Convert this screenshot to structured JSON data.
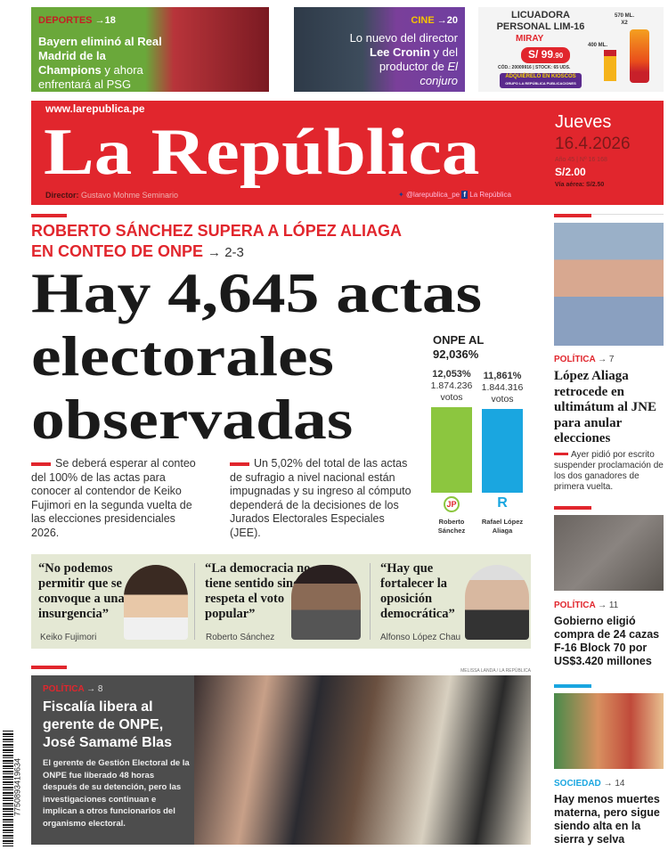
{
  "promos": {
    "sports": {
      "section": "DEPORTES",
      "ref": "→18",
      "text_bold": "Bayern eliminó al Real Madrid de la Champions",
      "text": " y ahora enfrentará al PSG"
    },
    "cinema": {
      "section": "CINE",
      "ref": "→20",
      "text": "Lo nuevo del director ",
      "text_bold": "Lee Cronin",
      "text2": " y del productor de ",
      "text_italic": "El conjuro"
    },
    "ad": {
      "title_line1": "LICUADORA",
      "title_line2": "PERSONAL LIM-16",
      "brand": "MIRAY",
      "price": "S/ 99",
      "price_cents": ".90",
      "code": "CÓD.: 20009916 | STOCK: 65 UDS.",
      "cta": "ADQUIÉRELO EN KIOSCOS",
      "cta_sub": "GRUPO LA REPÚBLICA PUBLICACIONES",
      "size1": "570 ML.",
      "size1b": "X2",
      "size2": "400 ML."
    }
  },
  "masthead": {
    "url": "www.larepublica.pe",
    "logo": "La República",
    "director_label": "Director:",
    "director": " Gustavo Mohme Seminario",
    "twitter": "@larepublica_pe",
    "facebook": "La República",
    "day": "Jueves",
    "date": "16.4.2026",
    "issue": "Año 45 | Nº 16 168",
    "price": "S/2.00",
    "air_price": "Vía aérea: S/2.50"
  },
  "lead": {
    "kicker": "ROBERTO SÁNCHEZ SUPERA A LÓPEZ ALIAGA EN CONTEO DE ONPE",
    "kicker_ref": "→ 2-3",
    "headline": [
      "Hay 4,645 actas",
      "electorales",
      "observadas"
    ],
    "col1": "Se deberá esperar al conteo del 100% de las actas para conocer al contendor de Keiko Fujimori en la segunda vuelta de las elecciones presidenciales 2026.",
    "col2": "Un 5,02% del total de las actas de sufragio a nivel nacional están impugnadas y su ingreso al cómputo dependerá de la decisiones de los Jurados Electorales Especiales (JEE)."
  },
  "chart_data": {
    "type": "bar",
    "title": "ONPE AL 92,036%",
    "categories": [
      "Roberto Sánchez",
      "Rafael López Aliaga"
    ],
    "values": [
      12.053,
      11.861
    ],
    "labels": [
      {
        "pct": "12,053%",
        "votes": "1.874.236",
        "unit": "votos"
      },
      {
        "pct": "11,861%",
        "votes": "1.844.316",
        "unit": "votos"
      }
    ],
    "colors": [
      "#8cc63f",
      "#1aa6e0"
    ],
    "logos": [
      "JP",
      "R"
    ],
    "names": [
      [
        "Roberto",
        "Sánchez"
      ],
      [
        "Rafael López",
        "Aliaga"
      ]
    ]
  },
  "quotes": [
    {
      "text": "“No podemos permitir que se convoque a una insurgencia”",
      "name": "Keiko Fujimori"
    },
    {
      "text": "“La democracia no tiene sentido sino se respeta el voto popular”",
      "name": "Roberto Sánchez"
    },
    {
      "text": "“Hay que fortalecer la oposición democrática”",
      "name": "Alfonso López Chau"
    }
  ],
  "bottom": {
    "credit": "MELISSA LANDA / LA REPÚBLICA",
    "section": "POLÍTICA",
    "ref": "→ 8",
    "headline": "Fiscalía libera al gerente de ONPE, José Samamé Blas",
    "body": "El gerente de Gestión Electoral de la ONPE fue liberado 48 horas después de su detención, pero las investigaciones continuan e implican a otros funcionarios del organismo electoral."
  },
  "barcode": "7750893419634",
  "sidebar": [
    {
      "section": "POLÍTICA",
      "ref": "→ 7",
      "headline": "López Aliaga retrocede en ultimátum al JNE para anular elecciones",
      "body": "Ayer pidió por escrito suspender proclamación de los dos ganadores de primera vuelta."
    },
    {
      "section": "POLÍTICA",
      "ref": "→ 11",
      "headline": "Gobierno eligió compra de 24 cazas F-16 Block 70 por US$3.420 millones"
    },
    {
      "section": "SOCIEDAD",
      "ref": "→ 14",
      "headline": "Hay menos muertes materna, pero sigue siendo alta en la sierra y selva"
    }
  ]
}
